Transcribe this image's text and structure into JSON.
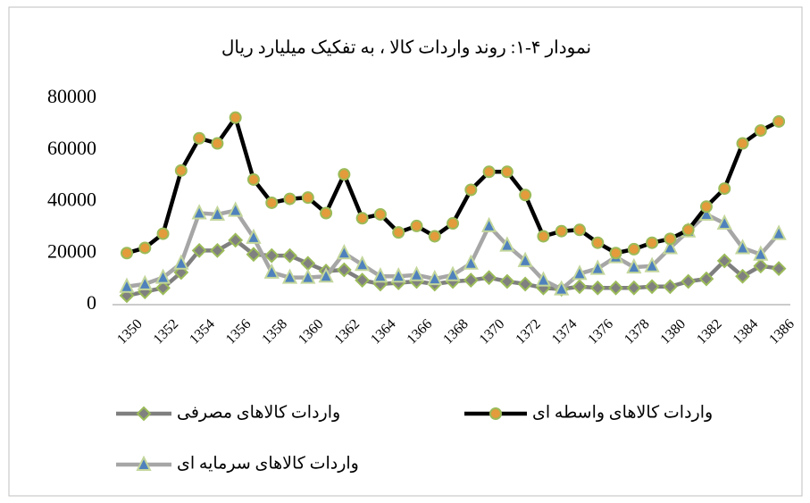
{
  "chart_data": {
    "type": "line",
    "title": "نمودار ۴-۱: روند واردات کالا ، به تفکیک میلیارد ریال",
    "categories": [
      "1350",
      null,
      "1352",
      null,
      "1354",
      null,
      "1356",
      null,
      "1358",
      null,
      "1360",
      null,
      "1362",
      null,
      "1364",
      null,
      "1366",
      null,
      "1368",
      null,
      "1370",
      null,
      "1372",
      null,
      "1374",
      null,
      "1376",
      null,
      "1378",
      null,
      "1380",
      null,
      "1382",
      null,
      "1384",
      null,
      "1386"
    ],
    "series": [
      {
        "name": "واردات کالاهای واسطه ای",
        "color": "#000000",
        "marker": "circle",
        "values": [
          20000,
          22000,
          27500,
          52000,
          64500,
          62500,
          72500,
          48500,
          39500,
          41000,
          41500,
          35500,
          50500,
          33500,
          35000,
          28000,
          30500,
          26500,
          31500,
          44500,
          51500,
          51500,
          42500,
          26500,
          28500,
          29000,
          24000,
          20000,
          21500,
          24000,
          25500,
          29000,
          38000,
          45000,
          62500,
          67500,
          71000
        ]
      },
      {
        "name": "واردات کالاهای مصرفی",
        "color": "#7f7f7f",
        "marker": "diamond",
        "values": [
          3500,
          5000,
          6500,
          12500,
          21000,
          21000,
          25000,
          19500,
          19000,
          19000,
          16000,
          13000,
          13500,
          9500,
          8000,
          8500,
          9000,
          8000,
          9000,
          9500,
          10500,
          9000,
          8000,
          6500,
          6000,
          7000,
          6500,
          6500,
          6500,
          7000,
          7000,
          9000,
          10000,
          17000,
          11000,
          15000,
          14000
        ]
      },
      {
        "name": "واردات کالاهای سرمایه ای",
        "color": "#a6a6a6",
        "marker": "triangle",
        "values": [
          7000,
          8000,
          10500,
          16000,
          35500,
          35000,
          36500,
          26000,
          12500,
          10500,
          10500,
          11000,
          20000,
          15500,
          11000,
          11000,
          11500,
          10000,
          11500,
          16000,
          30500,
          23000,
          17000,
          9500,
          6000,
          12000,
          14000,
          18500,
          14500,
          15000,
          22000,
          28500,
          35000,
          31500,
          22000,
          19500,
          27500
        ]
      }
    ],
    "ylim": [
      0,
      80000
    ],
    "yticks": [
      0,
      20000,
      40000,
      60000,
      80000
    ],
    "grid": false
  }
}
